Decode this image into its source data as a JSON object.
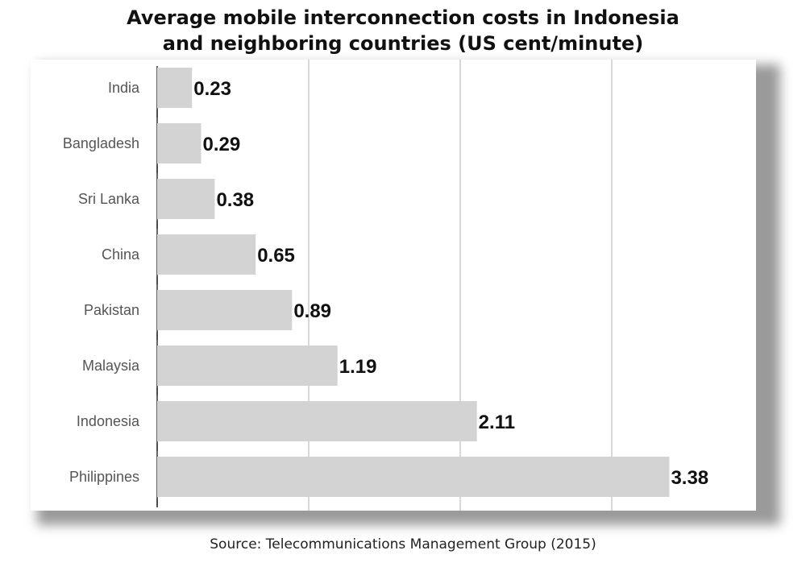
{
  "title_lines": [
    "Average mobile interconnection costs in Indonesia",
    "and neighboring countries (US cent/minute)"
  ],
  "source": "Source: Telecommunications Management Group (2015)",
  "colors": {
    "bar": "#d3d3d3",
    "grid": "#cccccc",
    "axis": "#333333",
    "label": "#555555",
    "value": "#111111"
  },
  "chart_data": {
    "type": "bar",
    "orientation": "horizontal",
    "title": "Average mobile interconnection costs in Indonesia and neighboring countries (US cent/minute)",
    "categories": [
      "India",
      "Bangladesh",
      "Sri Lanka",
      "China",
      "Pakistan",
      "Malaysia",
      "Indonesia",
      "Philippines"
    ],
    "values": [
      0.23,
      0.29,
      0.38,
      0.65,
      0.89,
      1.19,
      2.11,
      3.38
    ],
    "value_labels": [
      "0.23",
      "0.29",
      "0.38",
      "0.65",
      "0.89",
      "1.19",
      "2.11",
      "3.38"
    ],
    "xlim": [
      0,
      4
    ],
    "grid_x": [
      1,
      2,
      3,
      4
    ],
    "grid": true,
    "legend": "none"
  }
}
